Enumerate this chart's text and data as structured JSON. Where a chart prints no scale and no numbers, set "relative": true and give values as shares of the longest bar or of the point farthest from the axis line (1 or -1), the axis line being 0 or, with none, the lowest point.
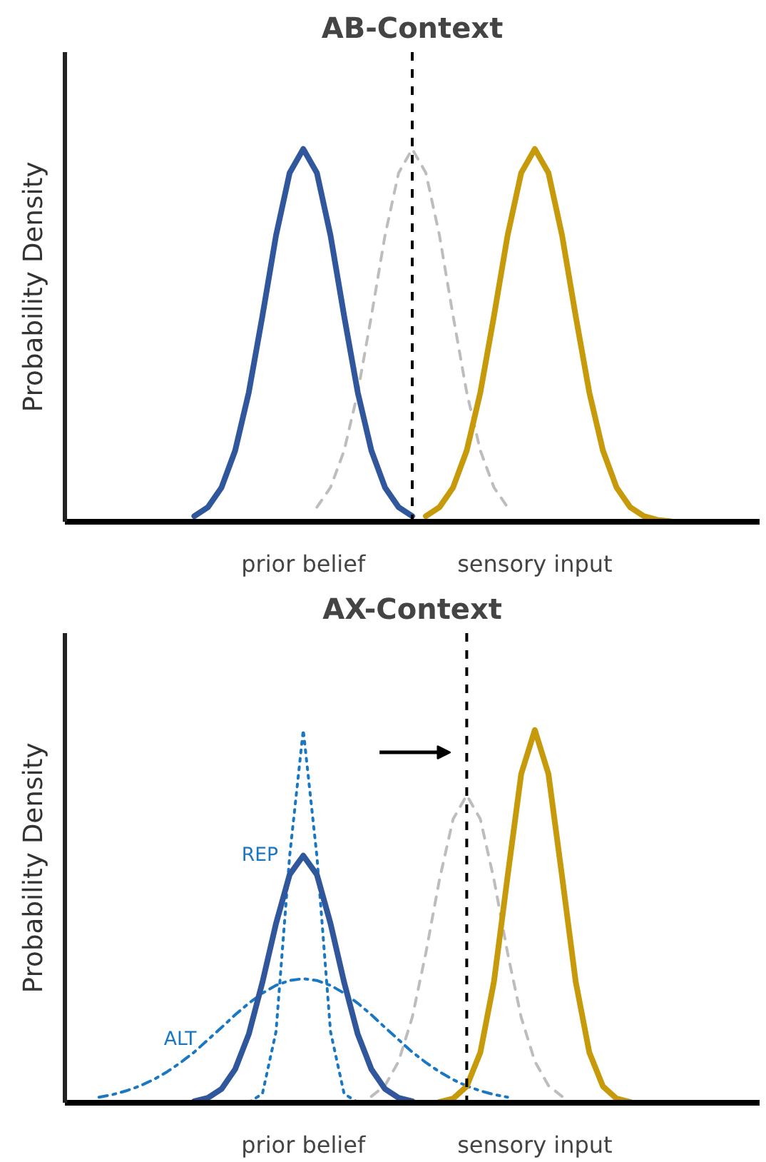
{
  "chart_data": [
    {
      "type": "line",
      "title": "AB-Context",
      "ylabel": "Probability Density",
      "relative": true,
      "tick_labels": "x",
      "categories": [
        null,
        null,
        null,
        null,
        null,
        null,
        null,
        null,
        null,
        null,
        null,
        null,
        null,
        null,
        null,
        null,
        null,
        "prior belief",
        null,
        null,
        null,
        null,
        null,
        null,
        null,
        null,
        null,
        null,
        null,
        null,
        null,
        null,
        null,
        null,
        "sensory input",
        null,
        null,
        null,
        null,
        null,
        null,
        null,
        null,
        null,
        null,
        null,
        null,
        null,
        null,
        null,
        null
      ],
      "series": [
        {
          "color": "#bdbdbd",
          "line_style": "dashed",
          "values": [
            null,
            null,
            null,
            null,
            null,
            null,
            null,
            null,
            null,
            null,
            null,
            null,
            null,
            null,
            null,
            null,
            null,
            null,
            0.039,
            0.092,
            0.191,
            0.347,
            0.552,
            0.768,
            0.936,
            1,
            0.936,
            0.768,
            0.552,
            0.347,
            0.191,
            0.092,
            0.039,
            null,
            null,
            null,
            null,
            null,
            null,
            null,
            null,
            null,
            null,
            null,
            null,
            null,
            null,
            null,
            null,
            null,
            null
          ]
        },
        {
          "color": "#30569c",
          "line_style": "solid",
          "values": [
            null,
            null,
            null,
            null,
            null,
            null,
            null,
            null,
            null,
            0.015,
            0.039,
            0.092,
            0.191,
            0.347,
            0.552,
            0.768,
            0.936,
            1,
            0.936,
            0.768,
            0.552,
            0.347,
            0.191,
            0.092,
            0.039,
            0.015,
            null,
            null,
            null,
            null,
            null,
            null,
            null,
            null,
            null,
            null,
            null,
            null,
            null,
            null,
            null,
            null,
            null,
            null,
            null,
            null,
            null,
            null,
            null,
            null,
            null
          ]
        },
        {
          "color": "#c69a0a",
          "line_style": "solid",
          "values": [
            null,
            null,
            null,
            null,
            null,
            null,
            null,
            null,
            null,
            null,
            null,
            null,
            null,
            null,
            null,
            null,
            null,
            null,
            null,
            null,
            null,
            null,
            null,
            null,
            null,
            null,
            0.015,
            0.039,
            0.092,
            0.191,
            0.347,
            0.552,
            0.768,
            0.936,
            1,
            0.936,
            0.768,
            0.552,
            0.347,
            0.191,
            0.092,
            0.039,
            0.015,
            0.005,
            0.001,
            null,
            null,
            null,
            null,
            null,
            null
          ]
        }
      ]
    },
    {
      "type": "line",
      "title": "AX-Context",
      "ylabel": "Probability Density",
      "relative": true,
      "tick_labels": "x",
      "categories": [
        null,
        null,
        null,
        null,
        null,
        null,
        null,
        null,
        null,
        null,
        null,
        null,
        null,
        null,
        null,
        null,
        null,
        "prior belief",
        null,
        null,
        null,
        null,
        null,
        null,
        null,
        null,
        null,
        null,
        null,
        null,
        null,
        null,
        null,
        null,
        "sensory input",
        null,
        null,
        null,
        null,
        null,
        null,
        null,
        null,
        null,
        null,
        null,
        null,
        null,
        null,
        null,
        null
      ],
      "series": [
        {
          "color": "#bdbdbd",
          "line_style": "dashed",
          "values": [
            null,
            null,
            null,
            null,
            null,
            null,
            null,
            null,
            null,
            null,
            null,
            null,
            null,
            null,
            null,
            null,
            null,
            null,
            null,
            null,
            null,
            null,
            0.017,
            0.046,
            0.111,
            0.229,
            0.402,
            0.599,
            0.761,
            0.825,
            0.761,
            0.599,
            0.402,
            0.229,
            0.111,
            0.046,
            0.017,
            null,
            null,
            null,
            null,
            null,
            null,
            null,
            null,
            null,
            null,
            null,
            null,
            null,
            null
          ]
        },
        {
          "name": "ALT",
          "color": "#1a78c2",
          "line_style": "dashdot",
          "values": [
            null,
            null,
            0.015,
            0.022,
            0.032,
            0.045,
            0.062,
            0.083,
            0.108,
            0.136,
            0.169,
            0.202,
            0.236,
            0.267,
            0.294,
            0.315,
            0.328,
            0.333,
            0.328,
            0.315,
            0.294,
            0.267,
            0.236,
            0.202,
            0.169,
            0.136,
            0.108,
            0.083,
            0.062,
            0.045,
            0.032,
            0.022,
            0.015,
            null,
            null,
            null,
            null,
            null,
            null,
            null,
            null,
            null,
            null,
            null,
            null,
            null,
            null,
            null,
            null,
            null,
            null
          ]
        },
        {
          "name": "REP",
          "color": "#1a78c2",
          "line_style": "dotted",
          "values": [
            null,
            null,
            null,
            null,
            null,
            null,
            null,
            null,
            null,
            null,
            null,
            null,
            null,
            0.001,
            0.024,
            0.191,
            0.662,
            1,
            0.662,
            0.191,
            0.024,
            0.001,
            null,
            null,
            null,
            null,
            null,
            null,
            null,
            null,
            null,
            null,
            null,
            null,
            null,
            null,
            null,
            null,
            null,
            null,
            null,
            null,
            null,
            null,
            null,
            null,
            null,
            null,
            null,
            null,
            null
          ]
        },
        {
          "color": "#30569c",
          "line_style": "solid",
          "values": [
            null,
            null,
            null,
            null,
            null,
            null,
            null,
            null,
            null,
            0.004,
            0.013,
            0.037,
            0.09,
            0.184,
            0.323,
            0.481,
            0.612,
            0.663,
            0.612,
            0.481,
            0.323,
            0.184,
            0.09,
            0.037,
            0.013,
            0.004,
            null,
            null,
            null,
            null,
            null,
            null,
            null,
            null,
            null,
            null,
            null,
            null,
            null,
            null,
            null,
            null,
            null,
            null,
            null,
            null,
            null,
            null,
            null,
            null,
            null
          ]
        },
        {
          "color": "#c69a0a",
          "line_style": "solid",
          "values": [
            null,
            null,
            null,
            null,
            null,
            null,
            null,
            null,
            null,
            null,
            null,
            null,
            null,
            null,
            null,
            null,
            null,
            null,
            null,
            null,
            null,
            null,
            null,
            null,
            null,
            null,
            null,
            0.002,
            0.011,
            0.044,
            0.135,
            0.325,
            0.607,
            0.882,
            1,
            0.882,
            0.607,
            0.325,
            0.135,
            0.044,
            0.011,
            0.002,
            null,
            null,
            null,
            null,
            null,
            null,
            null,
            null,
            null
          ]
        }
      ]
    }
  ]
}
